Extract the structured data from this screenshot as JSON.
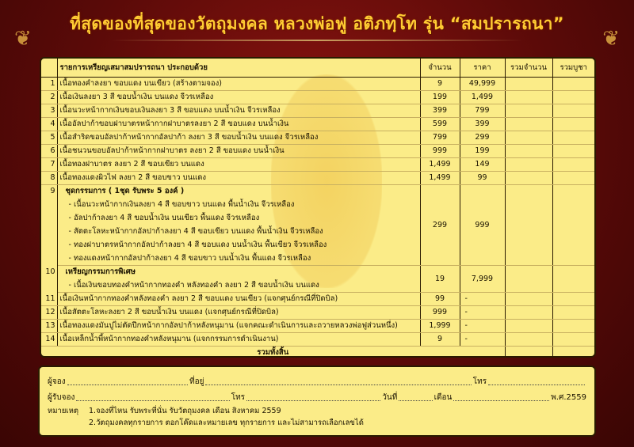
{
  "header": {
    "title": "ที่สุดของที่สุดของวัตถุมงคล หลวงพ่อฟู อติภทฺโท รุ่น “สมปรารถนา”"
  },
  "table": {
    "columns": [
      "รายการเหรียญเสมาสมปรารถนา ประกอบด้วย",
      "จำนวน",
      "ราคา",
      "รวมจำนวน",
      "รวมบูชา"
    ],
    "rows": [
      {
        "no": "1",
        "desc": "เนื้อทองคำลงยา ขอบแดง บนเขียว (สร้างตามจอง)",
        "qty": "9",
        "price": "49,999"
      },
      {
        "no": "2",
        "desc": "เนื้อเงินลงยา 3 สี ขอบน้ำเงิน บนแดง จีวรเหลือง",
        "qty": "199",
        "price": "1,499"
      },
      {
        "no": "3",
        "desc": "เนื้อนวะหน้ากากเงินขอบเงินลงยา 3 สี ขอบแดง บนน้ำเงิน จีวรเหลือง",
        "qty": "399",
        "price": "799"
      },
      {
        "no": "4",
        "desc": "เนื้ออัลปาก้าขอบฝาบาตรหน้ากากฝาบาตรลงยา 2 สี ขอบแดง บนน้ำเงิน",
        "qty": "599",
        "price": "399"
      },
      {
        "no": "5",
        "desc": "เนื้อสำริดขอบอัลปาก้าหน้ากากอัลปาก้า ลงยา 3 สี ขอบน้ำเงิน บนแดง จีวรเหลือง",
        "qty": "799",
        "price": "299"
      },
      {
        "no": "6",
        "desc": "เนื้อชนวนขอบอัลปาก้าหน้ากากฝาบาตร ลงยา 2 สี ขอบแดง บนน้ำเงิน",
        "qty": "999",
        "price": "199"
      },
      {
        "no": "7",
        "desc": "เนื้อทองฝาบาตร ลงยา 2 สี ขอบเขียว บนแดง",
        "qty": "1,499",
        "price": "149"
      },
      {
        "no": "8",
        "desc": "เนื้อทองแดงผิวไฟ ลงยา 2 สี ขอบขาว บนแดง",
        "qty": "1,499",
        "price": "99"
      }
    ],
    "set9": {
      "no": "9",
      "title": "ชุดกรรมการ ( 1ชุด รับพระ 5 องค์ )",
      "qty": "299",
      "price": "999",
      "items": [
        "- เนื้อนวะหน้ากากเงินลงยา 4 สี ขอบขาว บนแดง พื้นน้ำเงิน จีวรเหลือง",
        "- อัลปาก้าลงยา 4 สี ขอบน้ำเงิน บนเขียว พื้นแดง จีวรเหลือง",
        "- สัตตะโลหะหน้ากากอัลปาก้าลงยา 4 สี ขอบเขียว บนแดง พื้นน้ำเงิน จีวรเหลือง",
        "- ทองฝาบาตรหน้ากากอัลปาก้าลงยา 4 สี ขอบแดง บนน้ำเงิน พื้นเขียว จีวรเหลือง",
        "- ทองแดงหน้ากากอัลปาก้าลงยา 4 สี ขอบขาว บนน้ำเงิน พื้นแดง จีวรเหลือง"
      ]
    },
    "set10": {
      "no": "10",
      "title": "เหรียญกรรมการพิเศษ",
      "qty": "19",
      "price": "7,999",
      "items": [
        "- เนื้อเงินขอบทองคำหน้ากากทองคำ หลังทองคำ ลงยา 2 สี  ขอบน้ำเงิน บนแดง"
      ]
    },
    "rows2": [
      {
        "no": "11",
        "desc": "เนื้อเงินหน้ากากทองคำหลังทองคำ ลงยา 2 สี ขอบแดง บนเขียว (แจกศุนย์กรณีที่ปิดบิล)",
        "qty": "99",
        "price": "-"
      },
      {
        "no": "12",
        "desc": "เนื้อสัตตะโลหะลงยา 2 สี ขอบน้ำเงิน บนแดง (แจกศุนย์กรณีที่ปิดบิล)",
        "qty": "999",
        "price": "-"
      },
      {
        "no": "13",
        "desc": "เนื้อทองแดงมันปูไม่ตัดปีกหน้ากากอัลปาก้าหลังหนุมาน  (แจกคณะดำเนินการและถวายหลวงพ่อฟูส่วนหนึ่ง)",
        "qty": "1,999",
        "price": "-"
      },
      {
        "no": "14",
        "desc": "เนื้อเหล็กน้ำพี้หน้ากากทองคำหลังหนุมาน (แจกกรรมการดำเนินงาน)",
        "qty": "9",
        "price": "-"
      }
    ],
    "total_label": "รวมทั้งสิ้น"
  },
  "form": {
    "booker": "ผู้จอง",
    "address": "ที่อยู่",
    "tel": "โทร",
    "receiver": "ผู้รับจอง",
    "tel2": "โทร",
    "date": "วันที่",
    "month": "เดือน",
    "year": "พ.ศ.2559",
    "note_label": "หมายเหตุ",
    "notes": [
      "1.จองที่ไหน รับพระที่นั่น รับวัตถุมงคล เดือน  สิงหาคม 2559",
      "2.วัตถุมงคลทุกรายการ ตอกโค๊ดและหมายเลข ทุกรายการ และไม่สามารถเลือกเลขได้"
    ]
  },
  "colors": {
    "background": "#6a0c08",
    "title": "#ffcc33",
    "panel": "#fbec88"
  }
}
